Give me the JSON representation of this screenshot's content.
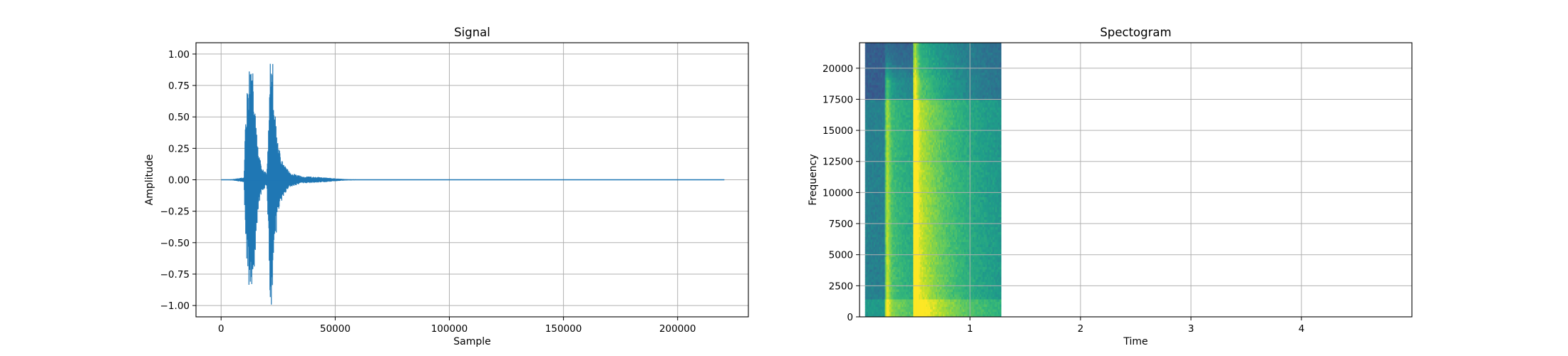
{
  "chart_data": [
    {
      "type": "line",
      "title": "Signal",
      "xlabel": "Sample",
      "ylabel": "Amplitude",
      "xlim": [
        -11000,
        231000
      ],
      "ylim": [
        -1.09,
        1.09
      ],
      "grid": true,
      "color": "#1f77b4",
      "xticks": [
        0,
        50000,
        100000,
        150000,
        200000
      ],
      "xtick_labels": [
        "0",
        "50000",
        "100000",
        "150000",
        "200000"
      ],
      "yticks": [
        -1.0,
        -0.75,
        -0.5,
        -0.25,
        0.0,
        0.25,
        0.5,
        0.75,
        1.0
      ],
      "ytick_labels": [
        "−1.00",
        "−0.75",
        "−0.50",
        "−0.25",
        "0.00",
        "0.25",
        "0.50",
        "0.75",
        "1.00"
      ],
      "x_range": [
        0,
        220500
      ],
      "envelope": [
        {
          "x": 0,
          "amp": 0.0
        },
        {
          "x": 5000,
          "amp": 0.005
        },
        {
          "x": 10000,
          "amp": 0.02
        },
        {
          "x": 10500,
          "amp": 0.35
        },
        {
          "x": 11500,
          "amp": 0.8
        },
        {
          "x": 12500,
          "amp": 0.88
        },
        {
          "x": 13500,
          "amp": 0.93
        },
        {
          "x": 14500,
          "amp": 0.72
        },
        {
          "x": 15500,
          "amp": 0.4
        },
        {
          "x": 16500,
          "amp": 0.2
        },
        {
          "x": 18000,
          "amp": 0.1
        },
        {
          "x": 20000,
          "amp": 0.05
        },
        {
          "x": 20800,
          "amp": 0.45
        },
        {
          "x": 21500,
          "amp": 1.0
        },
        {
          "x": 22500,
          "amp": 1.0
        },
        {
          "x": 23500,
          "amp": 0.55
        },
        {
          "x": 25000,
          "amp": 0.28
        },
        {
          "x": 27000,
          "amp": 0.14
        },
        {
          "x": 30000,
          "amp": 0.06
        },
        {
          "x": 35000,
          "amp": 0.03
        },
        {
          "x": 40000,
          "amp": 0.025
        },
        {
          "x": 45000,
          "amp": 0.02
        },
        {
          "x": 50000,
          "amp": 0.012
        },
        {
          "x": 55000,
          "amp": 0.005
        },
        {
          "x": 60000,
          "amp": 0.003
        },
        {
          "x": 220500,
          "amp": 0.0
        }
      ]
    },
    {
      "type": "heatmap",
      "title": "Spectogram",
      "xlabel": "Time",
      "ylabel": "Frequency",
      "xlim": [
        0.0,
        5.0
      ],
      "ylim": [
        0,
        22050
      ],
      "grid": true,
      "colormap": "viridis",
      "xticks": [
        1,
        2,
        3,
        4
      ],
      "xtick_labels": [
        "1",
        "2",
        "3",
        "4"
      ],
      "yticks": [
        0,
        2500,
        5000,
        7500,
        10000,
        12500,
        15000,
        17500,
        20000
      ],
      "ytick_labels": [
        "0",
        "2500",
        "5000",
        "7500",
        "10000",
        "12500",
        "15000",
        "17500",
        "20000"
      ],
      "data_time_range": [
        0.05,
        1.28
      ],
      "onsets": [
        {
          "time": 0.25,
          "strength": 0.75,
          "max_freq": 19000
        },
        {
          "time": 0.5,
          "strength": 1.0,
          "max_freq": 22050
        }
      ],
      "noise_floor_top": 17500
    }
  ]
}
